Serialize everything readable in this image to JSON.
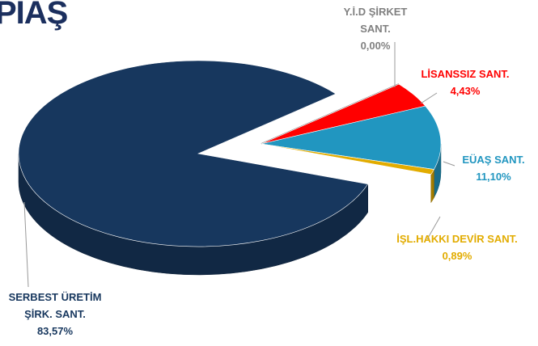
{
  "chart_data": {
    "type": "pie",
    "title": "PIAŞ",
    "categories": [
      "Y.İ.D  ŞİRKET SANT.",
      "LİSANSSIZ SANT.",
      "EÜAŞ SANT.",
      "İŞL.HAKKI DEVİR SANT.",
      "SERBEST ÜRETİM ŞİRK. SANT."
    ],
    "values": [
      0.0,
      4.43,
      11.1,
      0.89,
      83.57
    ],
    "value_labels": [
      "0,00%",
      "4,43%",
      "11,10%",
      "0,89%",
      "83,57%"
    ],
    "colors": [
      "#9a9a9a",
      "#ff0000",
      "#2196c0",
      "#e2ac00",
      "#17375e"
    ],
    "exploded": [
      true,
      true,
      true,
      true,
      false
    ]
  }
}
